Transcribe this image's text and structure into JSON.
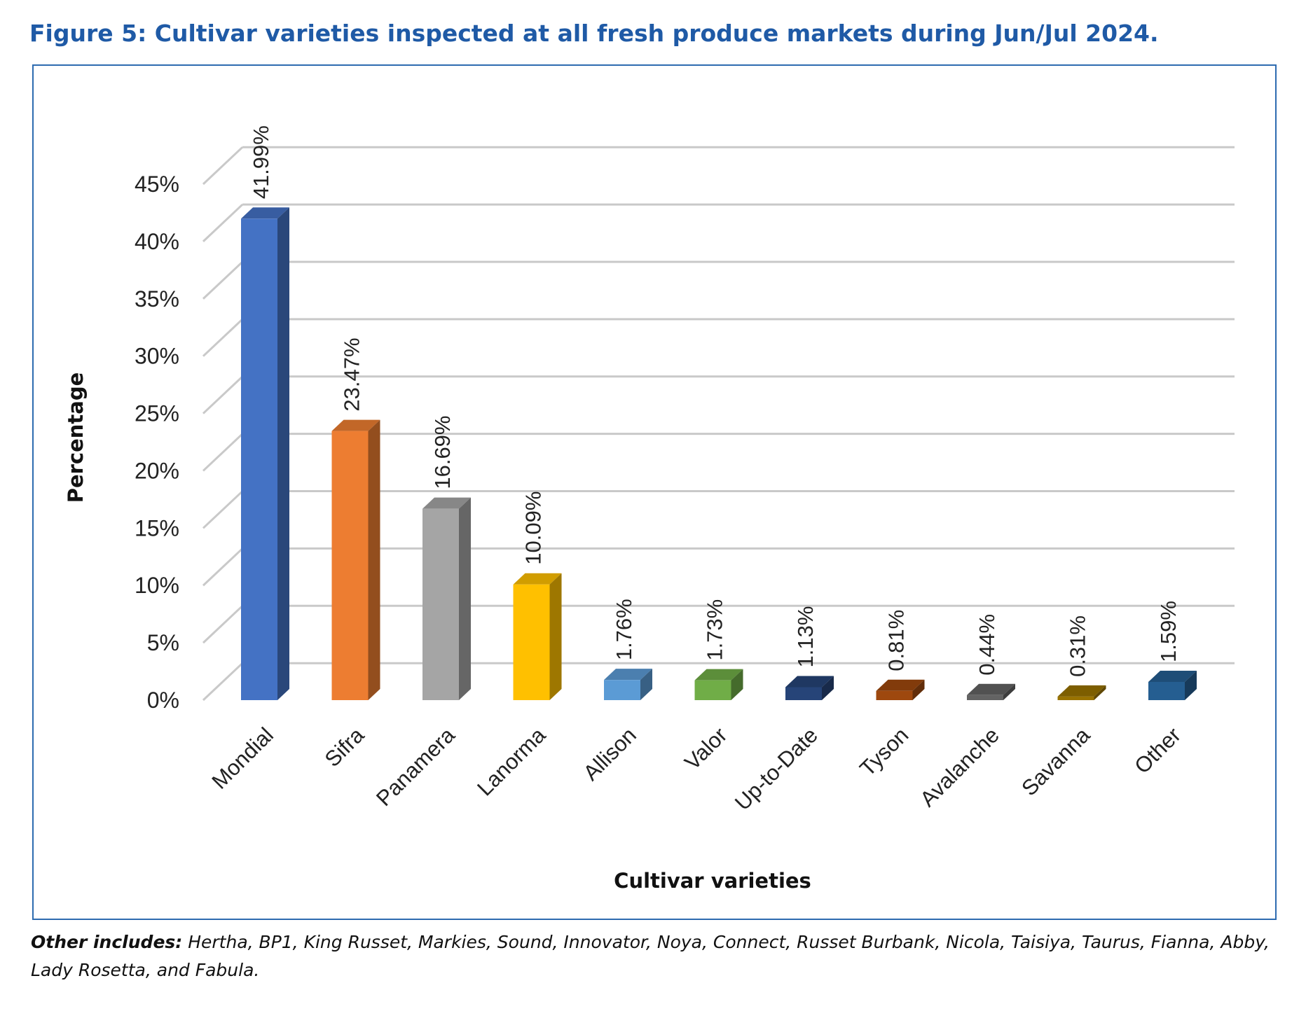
{
  "figure": {
    "title": "Figure 5: Cultivar varieties inspected at all fresh produce markets during Jun/Jul 2024.",
    "note_label": "Other includes:",
    "note_text": " Hertha, BP1, King Russet, Markies, Sound, Innovator, Noya, Connect, Russet Burbank, Nicola, Taisiya, Taurus, Fianna, Abby, Lady Rosetta, and Fabula."
  },
  "chart_data": {
    "type": "bar",
    "style": "3d-column",
    "xlabel": "Cultivar varieties",
    "ylabel": "Percentage",
    "ylim": [
      0,
      45
    ],
    "y_ticks": [
      "0%",
      "5%",
      "10%",
      "15%",
      "20%",
      "25%",
      "30%",
      "35%",
      "40%",
      "45%"
    ],
    "grid": true,
    "categories": [
      "Mondial",
      "Sifra",
      "Panamera",
      "Lanorma",
      "Allison",
      "Valor",
      "Up-to-Date",
      "Tyson",
      "Avalanche",
      "Savanna",
      "Other"
    ],
    "values": [
      41.99,
      23.47,
      16.69,
      10.09,
      1.76,
      1.73,
      1.13,
      0.81,
      0.44,
      0.31,
      1.59
    ],
    "data_labels": [
      "41.99%",
      "23.47%",
      "16.69%",
      "10.09%",
      "1.76%",
      "1.73%",
      "1.13%",
      "0.81%",
      "0.44%",
      "0.31%",
      "1.59%"
    ],
    "colors": [
      "#4472c4",
      "#ed7d31",
      "#a5a5a5",
      "#ffc000",
      "#5b9bd5",
      "#70ad47",
      "#264478",
      "#9e480e",
      "#636363",
      "#997300",
      "#255e91"
    ]
  }
}
